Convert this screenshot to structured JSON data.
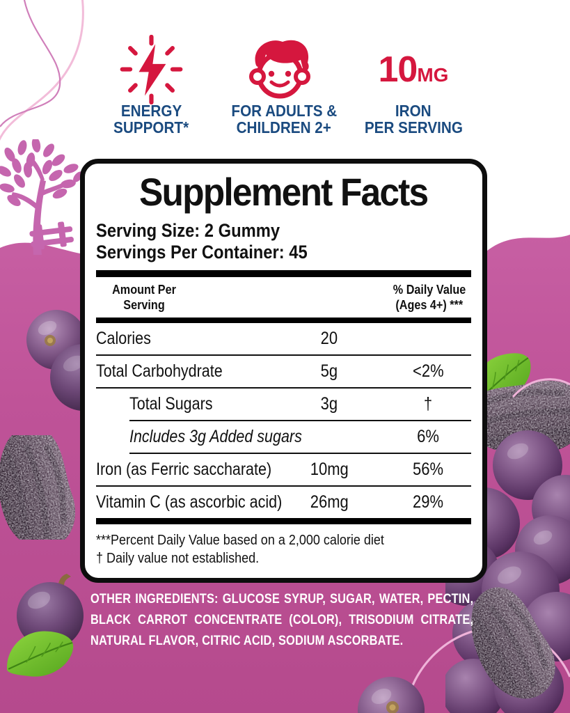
{
  "features": [
    {
      "icon": "lightning-burst-icon",
      "label_line1": "ENERGY",
      "label_line2": "SUPPORT*"
    },
    {
      "icon": "child-face-icon",
      "label_line1": "FOR ADULTS &",
      "label_line2": "CHILDREN 2+"
    },
    {
      "icon": "dose-text",
      "headline": "10",
      "headline_unit": "MG",
      "label_line1": "IRON",
      "label_line2": "PER SERVING"
    }
  ],
  "panel": {
    "title": "Supplement Facts",
    "serving_size": "Serving Size: 2 Gummy",
    "servings_per_container": "Servings Per Container: 45",
    "columns": {
      "left_line1": "Amount Per",
      "left_line2": "Serving",
      "right_line1": "% Daily Value",
      "right_line2": "(Ages 4+) ***"
    },
    "rows": [
      {
        "name": "Calories",
        "amount": "20",
        "dv": "",
        "indent": false,
        "italic": false,
        "divider_indent": false
      },
      {
        "name": "Total Carbohydrate",
        "amount": "5g",
        "dv": "<2%",
        "indent": false,
        "italic": false,
        "divider_indent": false
      },
      {
        "name": "Total Sugars",
        "amount": "3g",
        "dv": "†",
        "indent": true,
        "italic": false,
        "divider_indent": true
      },
      {
        "name": "Includes 3g Added sugars",
        "amount": "",
        "dv": "6%",
        "indent": true,
        "italic": true,
        "divider_indent": true
      },
      {
        "name": "Iron (as Ferric saccharate)",
        "amount": "10mg",
        "dv": "56%",
        "indent": false,
        "italic": false,
        "divider_indent": false
      },
      {
        "name": "Vitamin C (as ascorbic acid)",
        "amount": "26mg",
        "dv": "29%",
        "indent": false,
        "italic": false,
        "divider_indent": false
      }
    ],
    "footnote_line1": "***Percent Daily Value based on a 2,000 calorie diet",
    "footnote_line2": "† Daily value not established."
  },
  "other_ingredients": {
    "label": "OTHER INGREDIENTS:",
    "text": " GLUCOSE SYRUP, SUGAR, WATER, PECTIN, BLACK CARROT CONCENTRATE (COLOR), TRISODIUM CITRATE, NATURAL FLAVOR, CITRIC ACID, SODIUM ASCORBATE."
  },
  "colors": {
    "accent_red": "#d5173e",
    "navy": "#1b4b80",
    "background_pink": "#bf5398",
    "tree_magenta": "#c566ae",
    "panel_border": "#0d0d0d"
  }
}
